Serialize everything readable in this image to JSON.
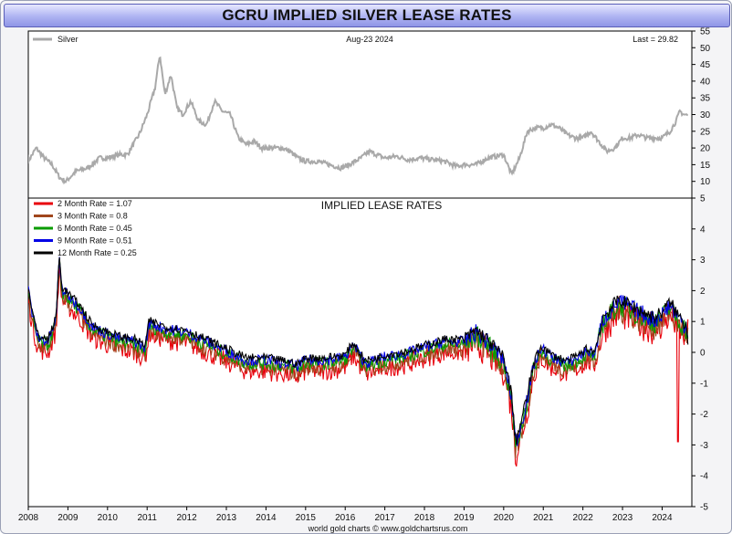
{
  "header": {
    "title": "GCRU IMPLIED SILVER LEASE RATES"
  },
  "footer": {
    "credit": "world gold charts © www.goldchartsrus.com"
  },
  "chart_data": [
    {
      "type": "line",
      "legend_label": "Silver",
      "date_text": "Aug-23  2024",
      "last_text": "Last = 29.82",
      "ylim": [
        5,
        55
      ],
      "yticks": [
        "10",
        "15",
        "20",
        "25",
        "30",
        "35",
        "40",
        "45",
        "50",
        "55"
      ],
      "x_ticks": [
        "2008",
        "2009",
        "2010",
        "2011",
        "2012",
        "2013",
        "2014",
        "2015",
        "2016",
        "2017",
        "2018",
        "2019",
        "2020",
        "2021",
        "2022",
        "2023",
        "2024"
      ],
      "series": [
        {
          "name": "Silver",
          "color": "#a9a9a9",
          "points": [
            [
              2008.0,
              16
            ],
            [
              2008.2,
              20
            ],
            [
              2008.4,
              17
            ],
            [
              2008.6,
              15
            ],
            [
              2008.8,
              11
            ],
            [
              2008.95,
              10
            ],
            [
              2009.2,
              13
            ],
            [
              2009.5,
              14
            ],
            [
              2009.8,
              17
            ],
            [
              2010.0,
              17
            ],
            [
              2010.3,
              18
            ],
            [
              2010.5,
              18
            ],
            [
              2010.8,
              24
            ],
            [
              2011.0,
              30
            ],
            [
              2011.2,
              38
            ],
            [
              2011.32,
              48
            ],
            [
              2011.45,
              36
            ],
            [
              2011.6,
              42
            ],
            [
              2011.75,
              32
            ],
            [
              2011.9,
              30
            ],
            [
              2012.1,
              34
            ],
            [
              2012.3,
              28
            ],
            [
              2012.5,
              27
            ],
            [
              2012.7,
              34
            ],
            [
              2012.9,
              31
            ],
            [
              2013.1,
              30
            ],
            [
              2013.3,
              23
            ],
            [
              2013.5,
              21
            ],
            [
              2013.7,
              22
            ],
            [
              2013.9,
              20
            ],
            [
              2014.1,
              20
            ],
            [
              2014.4,
              20
            ],
            [
              2014.6,
              19
            ],
            [
              2014.8,
              17
            ],
            [
              2015.0,
              16
            ],
            [
              2015.3,
              16
            ],
            [
              2015.6,
              15
            ],
            [
              2015.9,
              14
            ],
            [
              2016.1,
              15
            ],
            [
              2016.4,
              17
            ],
            [
              2016.6,
              19
            ],
            [
              2016.8,
              18
            ],
            [
              2017.0,
              17
            ],
            [
              2017.3,
              17.5
            ],
            [
              2017.6,
              16.5
            ],
            [
              2017.9,
              17
            ],
            [
              2018.2,
              16.5
            ],
            [
              2018.5,
              16
            ],
            [
              2018.8,
              14.5
            ],
            [
              2019.0,
              15
            ],
            [
              2019.3,
              15
            ],
            [
              2019.6,
              17
            ],
            [
              2019.8,
              17.5
            ],
            [
              2020.0,
              18
            ],
            [
              2020.2,
              12
            ],
            [
              2020.4,
              17
            ],
            [
              2020.6,
              25
            ],
            [
              2020.8,
              26
            ],
            [
              2021.0,
              26
            ],
            [
              2021.2,
              27
            ],
            [
              2021.4,
              26
            ],
            [
              2021.6,
              24
            ],
            [
              2021.8,
              23
            ],
            [
              2022.0,
              23
            ],
            [
              2022.2,
              25
            ],
            [
              2022.4,
              22
            ],
            [
              2022.6,
              19
            ],
            [
              2022.8,
              20
            ],
            [
              2023.0,
              23
            ],
            [
              2023.2,
              23
            ],
            [
              2023.4,
              24
            ],
            [
              2023.6,
              23
            ],
            [
              2023.8,
              23
            ],
            [
              2024.0,
              23
            ],
            [
              2024.2,
              25
            ],
            [
              2024.35,
              28
            ],
            [
              2024.45,
              31
            ],
            [
              2024.55,
              30
            ],
            [
              2024.65,
              29.82
            ]
          ]
        }
      ]
    },
    {
      "type": "line",
      "title": "IMPLIED LEASE RATES",
      "ylim": [
        -5,
        5
      ],
      "yticks": [
        "-5",
        "-4",
        "-3",
        "-2",
        "-1",
        "0",
        "1",
        "2",
        "3",
        "4",
        "5"
      ],
      "x_ticks": [
        "2008",
        "2009",
        "2010",
        "2011",
        "2012",
        "2013",
        "2014",
        "2015",
        "2016",
        "2017",
        "2018",
        "2019",
        "2020",
        "2021",
        "2022",
        "2023",
        "2024"
      ],
      "series": [
        {
          "name": "2 Month Rate",
          "legend": "2 Month Rate  = 1.07",
          "color": "#e8000b",
          "offset": -0.3,
          "noise": 0.32
        },
        {
          "name": "3 Month Rate",
          "legend": "3 Month Rate  = 0.8",
          "color": "#a0461c",
          "offset": -0.18,
          "noise": 0.27
        },
        {
          "name": "6 Month Rate",
          "legend": "6 Month Rate  = 0.45",
          "color": "#0a9b00",
          "offset": -0.05,
          "noise": 0.22
        },
        {
          "name": "9 Month Rate",
          "legend": "9 Month Rate  = 0.51",
          "color": "#0000e6",
          "offset": 0.05,
          "noise": 0.18
        },
        {
          "name": "12 Month Rate",
          "legend": "12 Month Rate  = 0.25",
          "color": "#000000",
          "offset": 0.12,
          "noise": 0.14
        }
      ],
      "base_curve": [
        [
          2008.0,
          2.0
        ],
        [
          2008.1,
          1.2
        ],
        [
          2008.25,
          0.4
        ],
        [
          2008.5,
          0.3
        ],
        [
          2008.7,
          1.0
        ],
        [
          2008.78,
          3.0
        ],
        [
          2008.85,
          2.0
        ],
        [
          2009.0,
          1.8
        ],
        [
          2009.3,
          1.4
        ],
        [
          2009.6,
          0.8
        ],
        [
          2009.9,
          0.6
        ],
        [
          2010.3,
          0.4
        ],
        [
          2010.7,
          0.3
        ],
        [
          2010.95,
          0.1
        ],
        [
          2011.05,
          0.9
        ],
        [
          2011.5,
          0.7
        ],
        [
          2012.0,
          0.6
        ],
        [
          2012.5,
          0.3
        ],
        [
          2013.0,
          0.0
        ],
        [
          2013.5,
          -0.3
        ],
        [
          2014.0,
          -0.3
        ],
        [
          2014.5,
          -0.4
        ],
        [
          2014.8,
          -0.5
        ],
        [
          2015.0,
          -0.3
        ],
        [
          2015.5,
          -0.3
        ],
        [
          2016.0,
          -0.2
        ],
        [
          2016.2,
          0.2
        ],
        [
          2016.5,
          -0.4
        ],
        [
          2016.8,
          -0.3
        ],
        [
          2017.0,
          -0.2
        ],
        [
          2017.5,
          -0.1
        ],
        [
          2018.0,
          0.1
        ],
        [
          2018.5,
          0.3
        ],
        [
          2019.0,
          0.3
        ],
        [
          2019.3,
          0.6
        ],
        [
          2019.5,
          0.4
        ],
        [
          2019.8,
          0.0
        ],
        [
          2020.0,
          -0.3
        ],
        [
          2020.2,
          -1.5
        ],
        [
          2020.3,
          -3.0
        ],
        [
          2020.42,
          -2.5
        ],
        [
          2020.6,
          -1.5
        ],
        [
          2020.75,
          -0.5
        ],
        [
          2020.95,
          0.1
        ],
        [
          2021.2,
          -0.2
        ],
        [
          2021.6,
          -0.4
        ],
        [
          2021.9,
          -0.2
        ],
        [
          2022.1,
          0.0
        ],
        [
          2022.3,
          -0.1
        ],
        [
          2022.5,
          1.0
        ],
        [
          2022.7,
          1.3
        ],
        [
          2022.9,
          1.6
        ],
        [
          2023.2,
          1.4
        ],
        [
          2023.5,
          1.2
        ],
        [
          2023.8,
          1.0
        ],
        [
          2024.0,
          1.2
        ],
        [
          2024.2,
          1.5
        ],
        [
          2024.4,
          1.1
        ],
        [
          2024.65,
          0.7
        ]
      ],
      "last_values": [
        1.07,
        0.8,
        0.45,
        0.51,
        0.25
      ]
    }
  ]
}
